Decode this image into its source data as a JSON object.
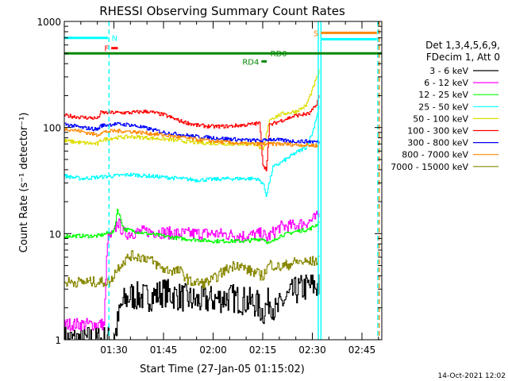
{
  "chart_data": {
    "type": "line",
    "title": "RHESSI Observing Summary Count Rates",
    "xlabel": "Start Time (27-Jan-05 01:15:02)",
    "ylabel": "Count Rate (s⁻¹ detector⁻¹)",
    "yscale": "log",
    "ylim": [
      1,
      1000
    ],
    "xlim": [
      0,
      96
    ],
    "x_unit": "minutes after 01:15:02",
    "x_ticks": [
      {
        "x": 15,
        "label": "01:30"
      },
      {
        "x": 30,
        "label": "01:45"
      },
      {
        "x": 45,
        "label": "02:00"
      },
      {
        "x": 60,
        "label": "02:15"
      },
      {
        "x": 75,
        "label": "02:30"
      },
      {
        "x": 90,
        "label": "02:45"
      }
    ],
    "y_ticks": [
      {
        "y": 1,
        "label": "1"
      },
      {
        "y": 10,
        "label": "10"
      },
      {
        "y": 100,
        "label": "100"
      },
      {
        "y": 1000,
        "label": "1000"
      }
    ],
    "legend_header": [
      "Det 1,3,4,5,6,9,",
      "FDecim 1, Att 0"
    ],
    "legend_position": "right",
    "timestamp": "14-Oct-2021 12:02",
    "series": [
      {
        "name": "3 - 6 keV",
        "color": "#000000",
        "x": [
          0,
          14,
          15,
          17,
          18,
          20,
          25,
          30,
          40,
          50,
          58,
          60,
          62,
          64,
          66,
          70,
          74,
          76,
          77
        ],
        "y": [
          1,
          1,
          1,
          2,
          2.3,
          2.6,
          2.5,
          2.8,
          2.3,
          2.5,
          2.2,
          1.8,
          2.4,
          1.8,
          2.3,
          2.9,
          3.2,
          3.2,
          3.2
        ]
      },
      {
        "name": "6 - 12 keV",
        "color": "#ff00ff",
        "x": [
          0,
          12,
          13,
          15,
          16,
          18,
          25,
          35,
          45,
          55,
          60,
          61,
          65,
          70,
          74,
          76,
          77
        ],
        "y": [
          1.4,
          1.4,
          9,
          10,
          13,
          10,
          10.5,
          10,
          10,
          9.5,
          10,
          9,
          11.5,
          12,
          13,
          14,
          15
        ]
      },
      {
        "name": "12 - 25 keV",
        "color": "#00ff00",
        "x": [
          0,
          10,
          15,
          16,
          18,
          25,
          35,
          45,
          55,
          60,
          62,
          65,
          70,
          74,
          76,
          77
        ],
        "y": [
          9.5,
          9.5,
          10.5,
          17,
          11,
          10,
          9,
          8.5,
          8.5,
          9,
          8,
          9.5,
          10.5,
          11,
          12,
          13
        ]
      },
      {
        "name": "25 - 50 keV",
        "color": "#00ffff",
        "x": [
          0,
          5,
          10,
          15,
          20,
          30,
          40,
          50,
          58,
          60,
          61,
          63,
          66,
          70,
          73,
          75,
          77
        ],
        "y": [
          35,
          33,
          34,
          35,
          36,
          34,
          32,
          33,
          33,
          30,
          23,
          42,
          48,
          58,
          65,
          90,
          160
        ]
      },
      {
        "name": "50 - 100 keV",
        "color": "#dddd00",
        "x": [
          0,
          5,
          10,
          11,
          15,
          20,
          30,
          40,
          50,
          58,
          60,
          62,
          66,
          70,
          73,
          75,
          77
        ],
        "y": [
          75,
          72,
          70,
          76,
          80,
          82,
          78,
          72,
          70,
          70,
          60,
          120,
          135,
          142,
          160,
          230,
          340
        ]
      },
      {
        "name": "100 - 300 keV",
        "color": "#ff0000",
        "x": [
          0,
          5,
          10,
          11,
          15,
          20,
          25,
          30,
          35,
          40,
          45,
          50,
          55,
          59,
          60,
          61,
          62,
          65,
          70,
          74,
          76,
          77
        ],
        "y": [
          130,
          125,
          122,
          138,
          138,
          138,
          142,
          132,
          115,
          105,
          102,
          103,
          106,
          110,
          45,
          40,
          105,
          115,
          130,
          135,
          160,
          200
        ]
      },
      {
        "name": "300 - 800 keV",
        "color": "#0000ff",
        "x": [
          0,
          5,
          10,
          11,
          15,
          20,
          25,
          30,
          40,
          50,
          55,
          60,
          62,
          65,
          70,
          74,
          77
        ],
        "y": [
          108,
          100,
          96,
          104,
          108,
          106,
          98,
          90,
          82,
          78,
          76,
          75,
          78,
          76,
          74,
          74,
          73
        ]
      },
      {
        "name": "800 - 7000 keV",
        "color": "#ff8800",
        "x": [
          0,
          5,
          10,
          11,
          15,
          20,
          30,
          40,
          50,
          55,
          60,
          65,
          70,
          74,
          77
        ],
        "y": [
          98,
          92,
          85,
          90,
          93,
          92,
          85,
          77,
          72,
          70,
          70,
          70,
          69,
          68,
          68
        ]
      },
      {
        "name": "7000 - 15000 keV",
        "color": "#888800",
        "x": [
          0,
          14,
          15,
          17,
          20,
          25,
          30,
          35,
          38,
          42,
          45,
          48,
          52,
          55,
          60,
          62,
          65,
          70,
          74,
          77
        ],
        "y": [
          3.5,
          3.5,
          4.2,
          5.2,
          6.2,
          5.9,
          4.6,
          4.4,
          3.5,
          3.4,
          3.7,
          4.4,
          5.2,
          4.6,
          4,
          5.2,
          4.8,
          5.4,
          5.4,
          5.6
        ]
      }
    ],
    "annotations": {
      "vlines": [
        {
          "x": 13.5,
          "color": "#00ffff",
          "style": "dashed"
        },
        {
          "x": 76.8,
          "color": "#00ffff",
          "style": "solid"
        },
        {
          "x": 77.6,
          "color": "#00ffff",
          "style": "solid"
        },
        {
          "x": 94.8,
          "color": "#00ffff",
          "style": "dashed"
        },
        {
          "x": 95.2,
          "color": "#ff8800",
          "style": "dashed"
        }
      ],
      "bars": [
        {
          "label": "",
          "x0": 0,
          "x1": 13.2,
          "y": 700,
          "color": "#00ffff"
        },
        {
          "label": "N",
          "x0": 13.6,
          "x1": 13.6,
          "y": 700,
          "color": "#00ffff"
        },
        {
          "label": "F",
          "x0": 14.2,
          "x1": 16.2,
          "y": 560,
          "color": "#ff0000"
        },
        {
          "label": "",
          "x0": 0,
          "x1": 96,
          "y": 500,
          "color": "#008800"
        },
        {
          "label": "RD4",
          "x0": 59.6,
          "x1": 61.2,
          "y": 420,
          "color": "#008800"
        },
        {
          "label": "RD0",
          "x0": 61.6,
          "x1": 61.6,
          "y": 500,
          "color": "#008800"
        },
        {
          "label": "S",
          "x0": 77.6,
          "x1": 94.5,
          "y": 780,
          "color": "#ff8800"
        },
        {
          "label": "",
          "x0": 77.6,
          "x1": 94.5,
          "y": 680,
          "color": "#00ffff"
        }
      ]
    }
  }
}
